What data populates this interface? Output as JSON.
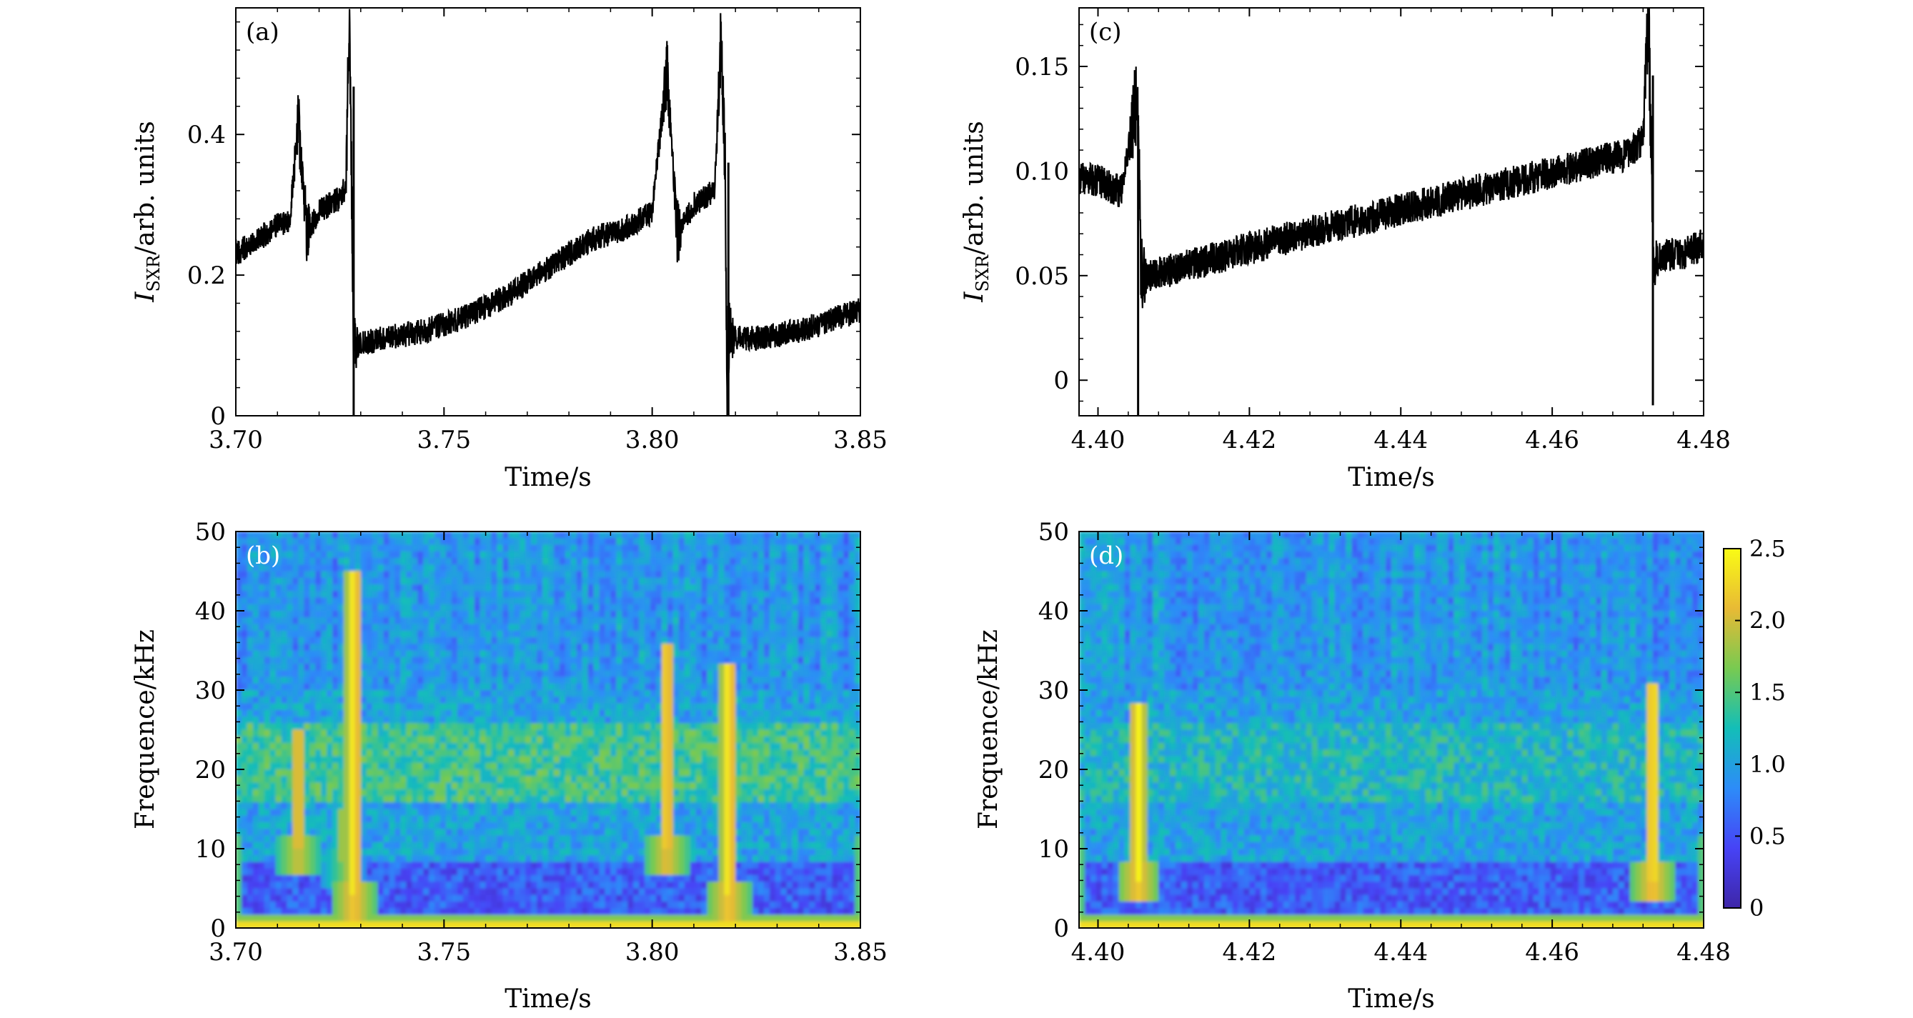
{
  "figure": {
    "x_label": "Time/s",
    "y_label_sxr_main": "I",
    "y_label_sxr_sub": "SXR",
    "y_label_sxr_rest": "/arb. units",
    "y_label_freq": "Frequence/kHz"
  },
  "chart_data": [
    {
      "id": "a",
      "panel_label": "(a)",
      "type": "line",
      "x_tick_labels": [
        "3.70",
        "3.75",
        "3.80",
        "3.85"
      ],
      "x_ticks": [
        3.7,
        3.75,
        3.8,
        3.85
      ],
      "y_tick_labels": [
        "0",
        "0.2",
        "0.4"
      ],
      "y_ticks": [
        0,
        0.2,
        0.4
      ],
      "xlim": [
        3.7,
        3.85
      ],
      "ylim": [
        0,
        0.58
      ],
      "xlabel": "Time/s",
      "ylabel": "I_SXR/arb. units",
      "series": [
        {
          "x": [
            3.7,
            3.705,
            3.71,
            3.713,
            3.715,
            3.717,
            3.72,
            3.725,
            3.7265,
            3.7272,
            3.7277,
            3.7282,
            3.729,
            3.735,
            3.745,
            3.755,
            3.765,
            3.775,
            3.785,
            3.795,
            3.8,
            3.8035,
            3.806,
            3.81,
            3.815,
            3.8165,
            3.8175,
            3.818,
            3.8185,
            3.8195,
            3.825,
            3.835,
            3.845,
            3.85
          ],
          "y": [
            0.23,
            0.25,
            0.27,
            0.28,
            0.42,
            0.26,
            0.29,
            0.31,
            0.33,
            0.57,
            0.4,
            0.11,
            0.1,
            0.11,
            0.12,
            0.14,
            0.17,
            0.21,
            0.25,
            0.27,
            0.29,
            0.49,
            0.26,
            0.3,
            0.32,
            0.54,
            0.36,
            0.0,
            0.12,
            0.11,
            0.11,
            0.12,
            0.14,
            0.15
          ],
          "spike_x": [
            3.7283,
            3.8183
          ],
          "spike_y": [
            0.0,
            0.0
          ],
          "noise_amplitude": 0.018,
          "color": "#000000"
        }
      ]
    },
    {
      "id": "c",
      "panel_label": "(c)",
      "type": "line",
      "x_tick_labels": [
        "4.40",
        "4.42",
        "4.44",
        "4.46",
        "4.48"
      ],
      "x_ticks": [
        4.4,
        4.42,
        4.44,
        4.46,
        4.48
      ],
      "y_tick_labels": [
        "0",
        "0.05",
        "0.10",
        "0.15"
      ],
      "y_ticks": [
        0,
        0.05,
        0.1,
        0.15
      ],
      "xlim": [
        4.3975,
        4.48
      ],
      "ylim": [
        -0.017,
        0.178
      ],
      "xlabel": "Time/s",
      "ylabel": "I_SXR/arb. units",
      "series": [
        {
          "x": [
            4.3975,
            4.4,
            4.403,
            4.4048,
            4.4052,
            4.4057,
            4.4062,
            4.407,
            4.415,
            4.425,
            4.435,
            4.445,
            4.455,
            4.465,
            4.47,
            4.472,
            4.4727,
            4.4733,
            4.4738,
            4.4745,
            4.477,
            4.48
          ],
          "y": [
            0.097,
            0.095,
            0.09,
            0.125,
            0.136,
            0.055,
            0.048,
            0.05,
            0.058,
            0.068,
            0.077,
            0.086,
            0.095,
            0.104,
            0.108,
            0.116,
            0.175,
            0.065,
            0.055,
            0.06,
            0.06,
            0.065
          ],
          "spike_x": [
            4.4053,
            4.4733
          ],
          "spike_y": [
            -0.017,
            -0.012
          ],
          "noise_amplitude": 0.008,
          "color": "#000000"
        }
      ]
    },
    {
      "id": "b",
      "panel_label": "(b)",
      "type": "heatmap",
      "x_tick_labels": [
        "3.70",
        "3.75",
        "3.80",
        "3.85"
      ],
      "x_ticks": [
        3.7,
        3.75,
        3.8,
        3.85
      ],
      "y_tick_labels": [
        "0",
        "10",
        "20",
        "30",
        "40",
        "50"
      ],
      "y_ticks": [
        0,
        10,
        20,
        30,
        40,
        50
      ],
      "xlim": [
        3.7,
        3.85
      ],
      "ylim": [
        0,
        50
      ],
      "xlabel": "Time/s",
      "ylabel": "Frequence/kHz",
      "features": [
        {
          "x": 3.7283,
          "f0": 4,
          "f1": 45,
          "value": 2.5
        },
        {
          "x": 3.8183,
          "f0": 4,
          "f1": 33,
          "value": 2.5
        },
        {
          "x": 3.8035,
          "f0": 10,
          "f1": 36,
          "value": 2.4
        },
        {
          "x": 3.715,
          "f0": 10,
          "f1": 25,
          "value": 2.3
        },
        {
          "x": 3.7255,
          "f0": 8,
          "f1": 15,
          "value": 1.9
        }
      ],
      "band_f": [
        16,
        26
      ],
      "band_value": 1.6
    },
    {
      "id": "d",
      "panel_label": "(d)",
      "type": "heatmap",
      "x_tick_labels": [
        "4.40",
        "4.42",
        "4.44",
        "4.46",
        "4.48"
      ],
      "x_ticks": [
        4.4,
        4.42,
        4.44,
        4.46,
        4.48
      ],
      "y_tick_labels": [
        "0",
        "10",
        "20",
        "30",
        "40",
        "50"
      ],
      "y_ticks": [
        0,
        10,
        20,
        30,
        40,
        50
      ],
      "xlim": [
        4.3975,
        4.48
      ],
      "ylim": [
        0,
        50
      ],
      "xlabel": "Time/s",
      "ylabel": "Frequence/kHz",
      "features": [
        {
          "x": 4.4053,
          "f0": 6,
          "f1": 28,
          "value": 2.5
        },
        {
          "x": 4.4733,
          "f0": 6,
          "f1": 31,
          "value": 2.5
        }
      ],
      "band_f": [
        16,
        26
      ],
      "band_value": 1.4,
      "colorbar": {
        "ticks": [
          0,
          0.5,
          1.0,
          1.5,
          2.0,
          2.5
        ],
        "tick_labels": [
          "0",
          "0.5",
          "1.0",
          "1.5",
          "2.0",
          "2.5"
        ],
        "range": [
          0,
          2.5
        ],
        "colors": [
          "#3e26a8",
          "#4743f6",
          "#2d8cf8",
          "#13beb8",
          "#78ca51",
          "#e8ba35",
          "#f9fb15"
        ]
      }
    }
  ]
}
